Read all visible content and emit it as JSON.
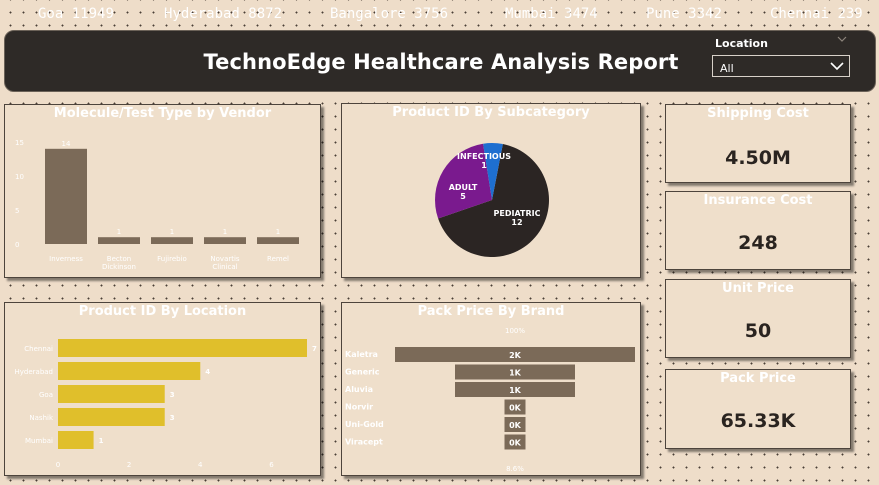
{
  "ticker": [
    {
      "city": "Goa",
      "value": "11949"
    },
    {
      "city": "Hyderabad",
      "value": "8872"
    },
    {
      "city": "Bangalore",
      "value": "3756"
    },
    {
      "city": "Mumbai",
      "value": "3474"
    },
    {
      "city": "Pune",
      "value": "3342"
    },
    {
      "city": "Chennai",
      "value": "239"
    }
  ],
  "header": {
    "title": "TechnoEdge Healthcare Analysis Report",
    "slicer_label": "Location",
    "slicer_value": "All",
    "clear_icon": "eraser-icon",
    "dropdown_icon": "chevron-down-icon"
  },
  "colors": {
    "background": "#eeddc9",
    "header_bg": "#2e2a27",
    "vendor_bar": "#7b6a58",
    "location_bar": "#e0bf2b",
    "funnel_bar": "#7b6a58",
    "pie_pediatric": "#2b2523",
    "pie_adult": "#7a1a8e",
    "pie_infectious": "#1e6fd0"
  },
  "kpis": [
    {
      "label": "Shipping Cost",
      "value": "4.50M"
    },
    {
      "label": "Insurance Cost",
      "value": "248"
    },
    {
      "label": "Unit Price",
      "value": "50"
    },
    {
      "label": "Pack Price",
      "value": "65.33K"
    }
  ],
  "chart_data": [
    {
      "type": "bar",
      "title": "Molecule/Test Type by Vendor",
      "categories": [
        "Inverness",
        "Becton Dickinson",
        "Fujirebio",
        "Novartis Clinical",
        "Remel"
      ],
      "category_display": [
        "Inverness",
        "Becton\nDickinson",
        "Fujirebio",
        "Novartis\nClinical",
        "Remel"
      ],
      "values": [
        14,
        1,
        1,
        1,
        1
      ],
      "y_ticks": [
        "0",
        "5",
        "10",
        "15"
      ],
      "ylim": [
        0,
        15
      ]
    },
    {
      "type": "pie",
      "title": "Product ID By Subcategory",
      "labels": [
        "PEDIATRIC",
        "ADULT",
        "INFECTIOUS"
      ],
      "values": [
        12,
        5,
        1
      ]
    },
    {
      "type": "bar",
      "orientation": "horizontal",
      "title": "Product ID By Location",
      "categories": [
        "Chennai",
        "Hyderabad",
        "Goa",
        "Nashik",
        "Mumbai"
      ],
      "values": [
        7,
        4,
        3,
        3,
        1
      ],
      "x_ticks": [
        "0",
        "2",
        "4",
        "6"
      ],
      "xlim": [
        0,
        7
      ]
    },
    {
      "type": "funnel",
      "title": "Pack Price By Brand",
      "categories": [
        "Kaletra",
        "Generic",
        "Aluvia",
        "Norvir",
        "Uni-Gold",
        "Viracept"
      ],
      "values": [
        2000,
        1000,
        1000,
        0,
        0,
        0
      ],
      "value_labels": [
        "2K",
        "1K",
        "1K",
        "0K",
        "0K",
        "0K"
      ],
      "top_pct": "100%",
      "bottom_pct": "8.6%"
    }
  ]
}
